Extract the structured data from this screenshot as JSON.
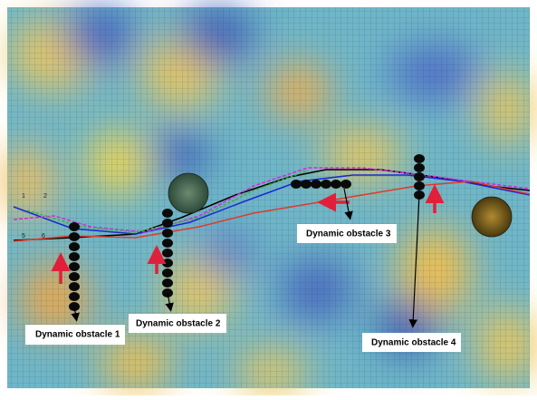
{
  "obstacle_labels": [
    "Dynamic obstacle 1",
    "Dynamic obstacle 2",
    "Dynamic obstacle 3",
    "Dynamic obstacle 4"
  ],
  "path_labels": [
    "1",
    "2",
    "5",
    "6"
  ]
}
